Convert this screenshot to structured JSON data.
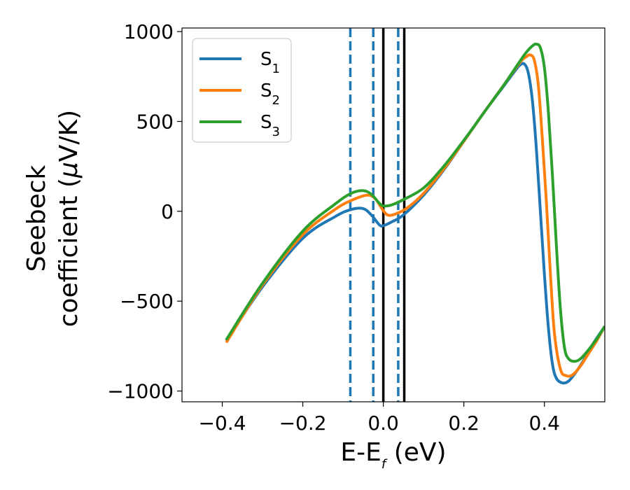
{
  "chart_data": {
    "type": "line",
    "xlabel": {
      "main": "E-E",
      "sub": "f",
      "unit": " (eV)"
    },
    "ylabel": {
      "line1": "Seebeck",
      "line2": "coefficient  (",
      "mu": "μ",
      "unit": "V/K)"
    },
    "xlim": [
      -0.5,
      0.55
    ],
    "ylim": [
      -1060,
      1020
    ],
    "xticks": [
      -0.4,
      -0.2,
      0.0,
      0.2,
      0.4
    ],
    "xtick_labels": [
      "−0.4",
      "−0.2",
      "0.0",
      "0.2",
      "0.4"
    ],
    "yticks": [
      -1000,
      -500,
      0,
      500,
      1000
    ],
    "ytick_labels": [
      "−1000",
      "−500",
      "0",
      "500",
      "1000"
    ],
    "grid": false,
    "legend_position": "upper-left",
    "vertical_lines": [
      {
        "x": -0.082,
        "style": "dashed",
        "color": "#1f77b4"
      },
      {
        "x": -0.025,
        "style": "dashed",
        "color": "#1f77b4"
      },
      {
        "x": 0.037,
        "style": "dashed",
        "color": "#1f77b4"
      },
      {
        "x": 0.0,
        "style": "solid",
        "color": "#000000"
      },
      {
        "x": 0.052,
        "style": "solid",
        "color": "#000000"
      }
    ],
    "series": [
      {
        "name": "S",
        "sub": "1",
        "color": "#1f77b4",
        "x": [
          -0.39,
          -0.3,
          -0.2,
          -0.12,
          -0.08,
          -0.05,
          -0.03,
          -0.01,
          0.0,
          0.02,
          0.05,
          0.1,
          0.15,
          0.2,
          0.25,
          0.3,
          0.33,
          0.34,
          0.35,
          0.36,
          0.37,
          0.38,
          0.39,
          0.4,
          0.41,
          0.42,
          0.43,
          0.445,
          0.46,
          0.48,
          0.5,
          0.52,
          0.55
        ],
        "y": [
          -720,
          -420,
          -150,
          -30,
          10,
          15,
          -20,
          -75,
          -80,
          -60,
          -20,
          90,
          230,
          390,
          550,
          700,
          790,
          815,
          820,
          770,
          620,
          350,
          0,
          -350,
          -650,
          -850,
          -930,
          -955,
          -945,
          -890,
          -820,
          -740,
          -640
        ]
      },
      {
        "name": "S",
        "sub": "2",
        "color": "#ff7f0e",
        "x": [
          -0.39,
          -0.3,
          -0.2,
          -0.12,
          -0.08,
          -0.04,
          -0.02,
          -0.005,
          0.01,
          0.03,
          0.06,
          0.1,
          0.15,
          0.2,
          0.25,
          0.3,
          0.34,
          0.355,
          0.365,
          0.375,
          0.385,
          0.395,
          0.405,
          0.415,
          0.425,
          0.44,
          0.455,
          0.47,
          0.49,
          0.51,
          0.53,
          0.55
        ],
        "y": [
          -730,
          -410,
          -130,
          10,
          60,
          90,
          70,
          20,
          -20,
          -15,
          20,
          100,
          235,
          390,
          550,
          705,
          830,
          860,
          870,
          840,
          700,
          400,
          50,
          -350,
          -680,
          -880,
          -915,
          -910,
          -860,
          -790,
          -720,
          -640
        ]
      },
      {
        "name": "S",
        "sub": "3",
        "color": "#2ca02c",
        "x": [
          -0.39,
          -0.3,
          -0.2,
          -0.12,
          -0.08,
          -0.05,
          -0.03,
          -0.01,
          0.0,
          0.02,
          0.05,
          0.1,
          0.15,
          0.2,
          0.25,
          0.3,
          0.35,
          0.37,
          0.38,
          0.39,
          0.4,
          0.41,
          0.42,
          0.43,
          0.44,
          0.45,
          0.46,
          0.475,
          0.49,
          0.51,
          0.53,
          0.55
        ],
        "y": [
          -715,
          -400,
          -110,
          40,
          100,
          115,
          95,
          45,
          30,
          35,
          65,
          130,
          250,
          395,
          550,
          705,
          870,
          920,
          930,
          910,
          800,
          550,
          200,
          -200,
          -550,
          -760,
          -820,
          -835,
          -820,
          -770,
          -710,
          -640
        ]
      }
    ],
    "legend": [
      {
        "name": "S",
        "sub": "1"
      },
      {
        "name": "S",
        "sub": "2"
      },
      {
        "name": "S",
        "sub": "3"
      }
    ]
  }
}
